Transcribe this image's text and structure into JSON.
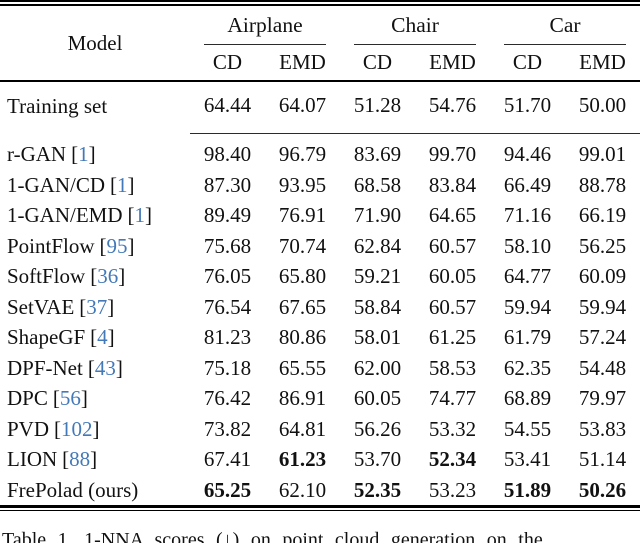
{
  "table": {
    "model_header": "Model",
    "groups": [
      {
        "label": "Airplane"
      },
      {
        "label": "Chair"
      },
      {
        "label": "Car"
      }
    ],
    "metric_headers": [
      "CD",
      "EMD",
      "CD",
      "EMD",
      "CD",
      "EMD"
    ],
    "training_row": {
      "model": "Training set",
      "values": [
        "64.44",
        "64.07",
        "51.28",
        "54.76",
        "51.70",
        "50.00"
      ]
    },
    "rows": [
      {
        "model": "r-GAN",
        "cite": "1",
        "values": [
          "98.40",
          "96.79",
          "83.69",
          "99.70",
          "94.46",
          "99.01"
        ],
        "bold": []
      },
      {
        "model": "1-GAN/CD",
        "cite": "1",
        "values": [
          "87.30",
          "93.95",
          "68.58",
          "83.84",
          "66.49",
          "88.78"
        ],
        "bold": []
      },
      {
        "model": "1-GAN/EMD",
        "cite": "1",
        "values": [
          "89.49",
          "76.91",
          "71.90",
          "64.65",
          "71.16",
          "66.19"
        ],
        "bold": []
      },
      {
        "model": "PointFlow",
        "cite": "95",
        "values": [
          "75.68",
          "70.74",
          "62.84",
          "60.57",
          "58.10",
          "56.25"
        ],
        "bold": []
      },
      {
        "model": "SoftFlow",
        "cite": "36",
        "values": [
          "76.05",
          "65.80",
          "59.21",
          "60.05",
          "64.77",
          "60.09"
        ],
        "bold": []
      },
      {
        "model": "SetVAE",
        "cite": "37",
        "values": [
          "76.54",
          "67.65",
          "58.84",
          "60.57",
          "59.94",
          "59.94"
        ],
        "bold": []
      },
      {
        "model": "ShapeGF",
        "cite": "4",
        "values": [
          "81.23",
          "80.86",
          "58.01",
          "61.25",
          "61.79",
          "57.24"
        ],
        "bold": []
      },
      {
        "model": "DPF-Net",
        "cite": "43",
        "values": [
          "75.18",
          "65.55",
          "62.00",
          "58.53",
          "62.35",
          "54.48"
        ],
        "bold": []
      },
      {
        "model": "DPC",
        "cite": "56",
        "values": [
          "76.42",
          "86.91",
          "60.05",
          "74.77",
          "68.89",
          "79.97"
        ],
        "bold": []
      },
      {
        "model": "PVD",
        "cite": "102",
        "values": [
          "73.82",
          "64.81",
          "56.26",
          "53.32",
          "54.55",
          "53.83"
        ],
        "bold": []
      },
      {
        "model": "LION",
        "cite": "88",
        "values": [
          "67.41",
          "61.23",
          "53.70",
          "52.34",
          "53.41",
          "51.14"
        ],
        "bold": [
          1,
          3
        ]
      },
      {
        "model": "FrePolad (ours)",
        "cite": null,
        "values": [
          "65.25",
          "62.10",
          "52.35",
          "53.23",
          "51.89",
          "50.26"
        ],
        "bold": [
          0,
          2,
          4,
          5
        ]
      }
    ]
  },
  "caption": "Table 1. 1-NNA scores (↓) on point cloud generation on the",
  "colors": {
    "citation_link": "#4479b8",
    "text": "#111111",
    "rule": "#000000"
  }
}
